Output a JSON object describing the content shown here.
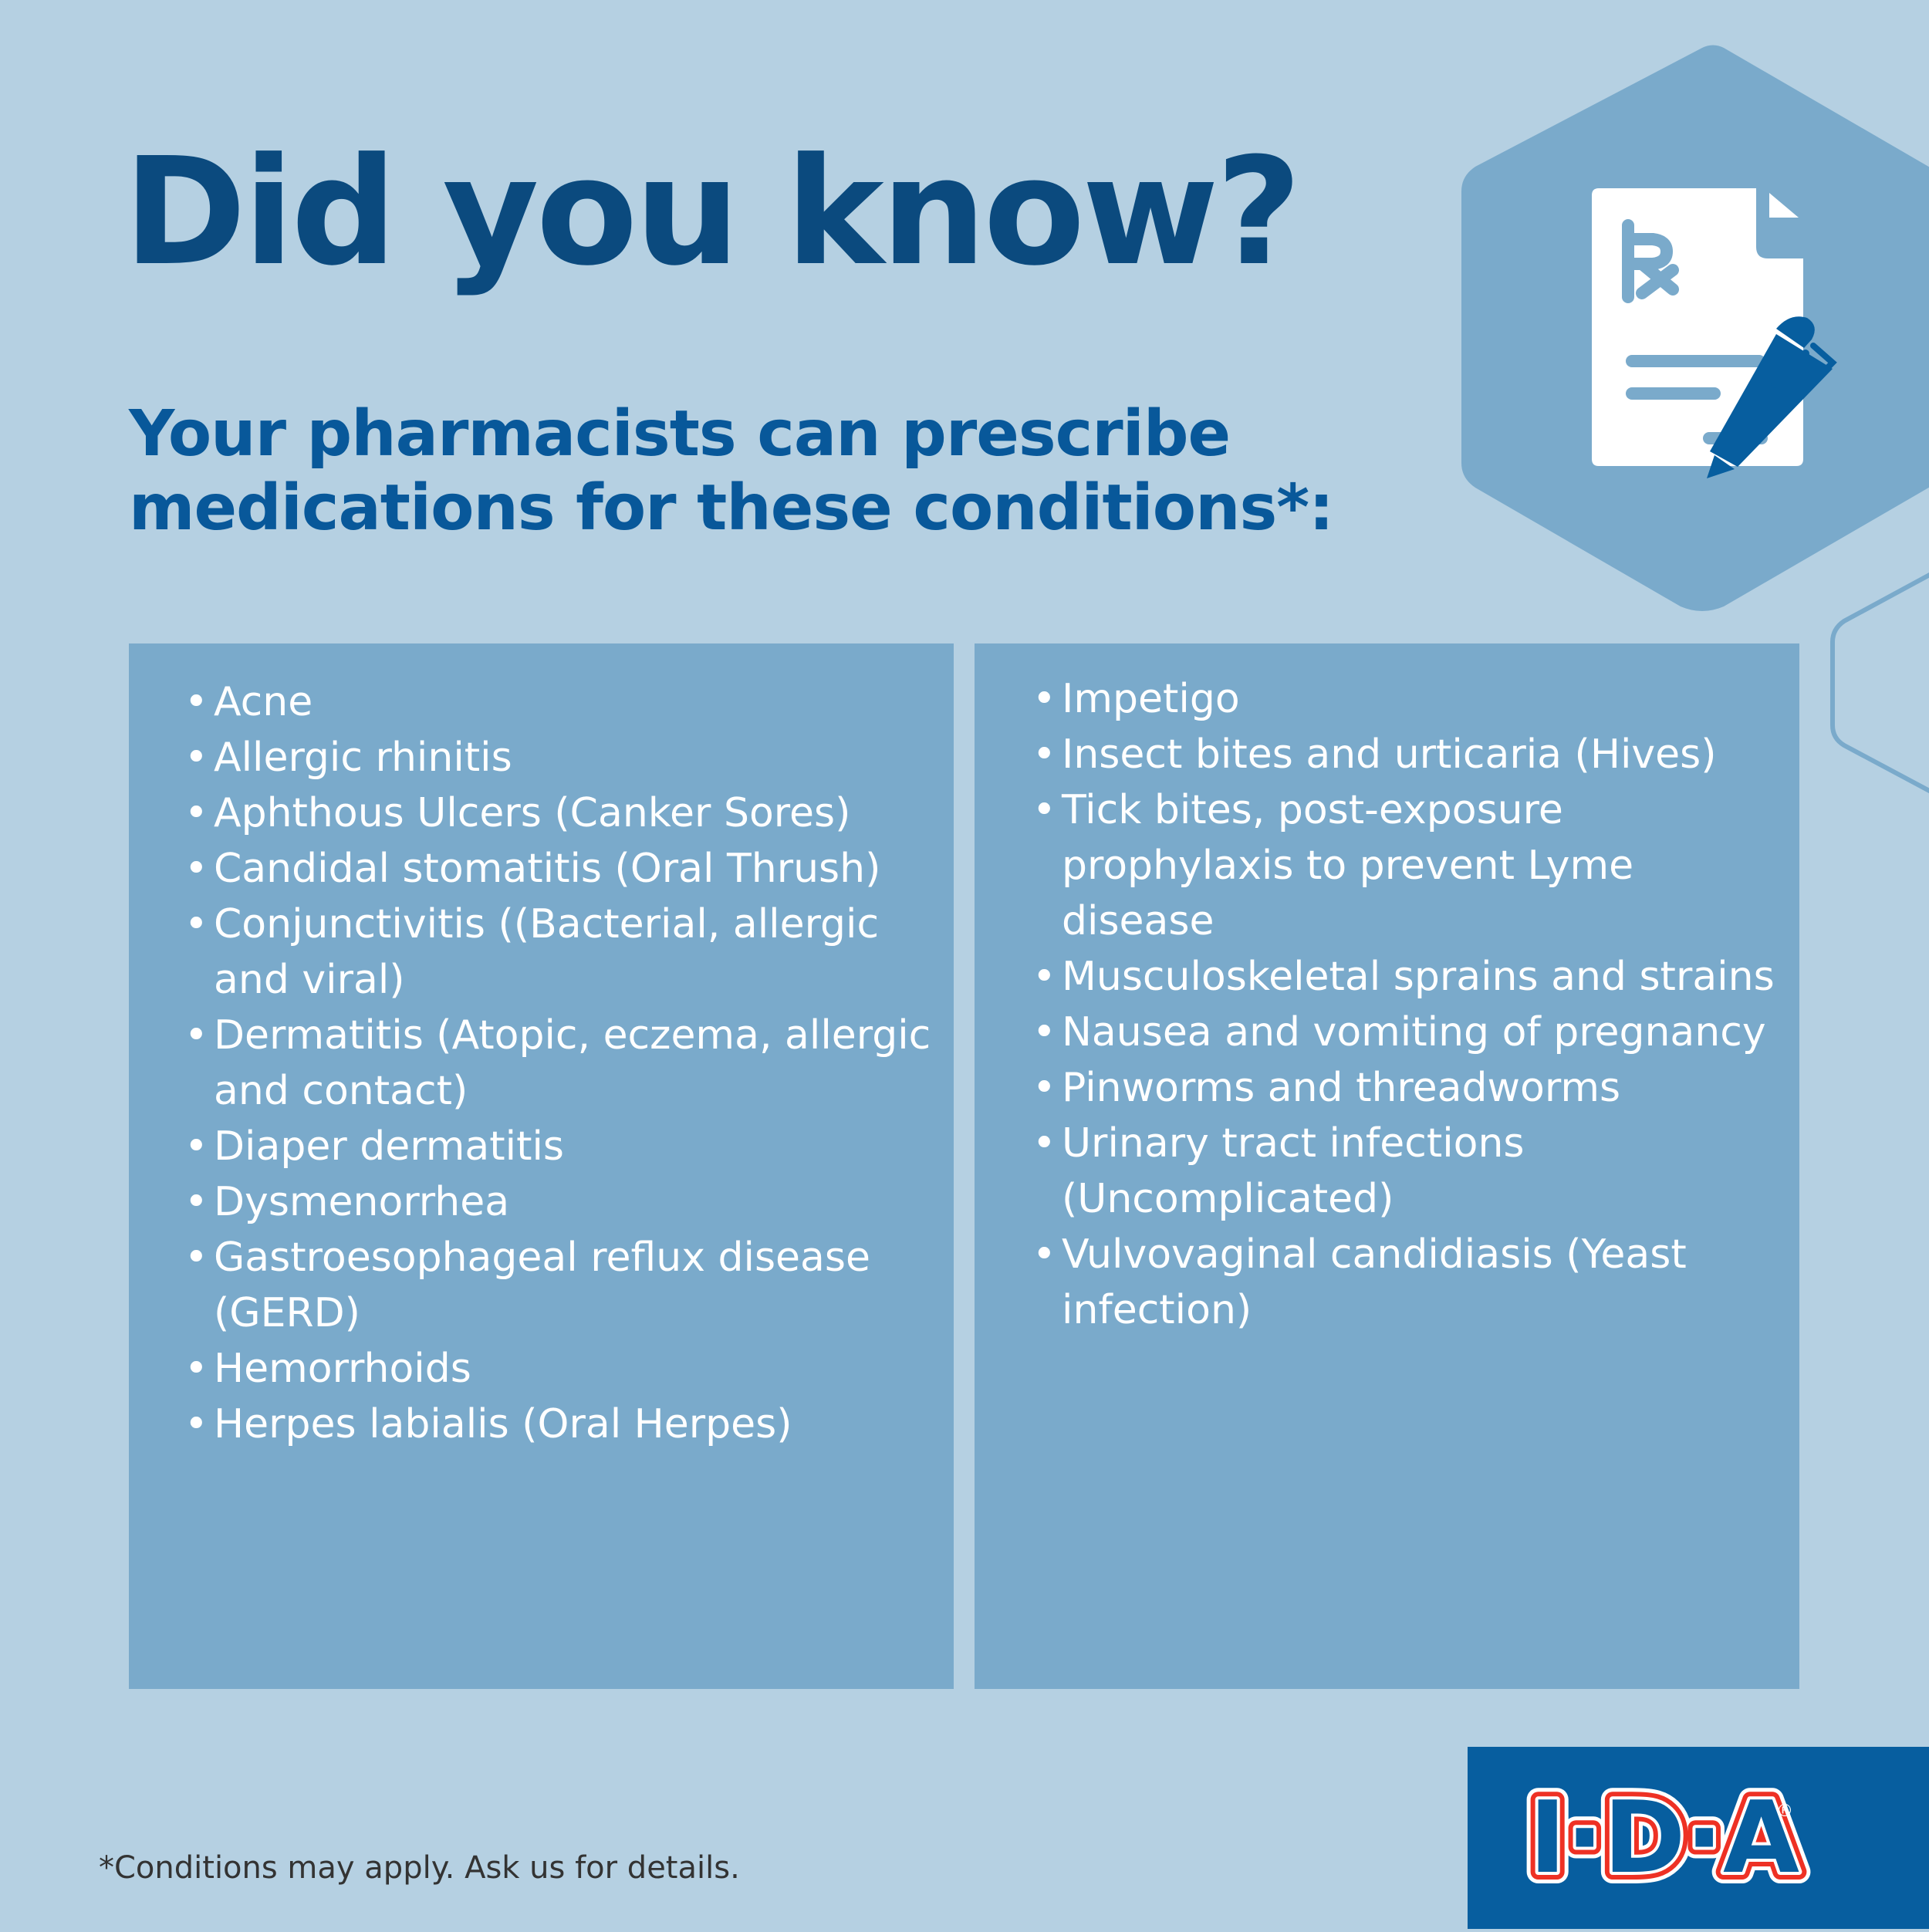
{
  "header": {
    "title": "Did you know?",
    "subtitle_line1": "Your pharmacists can prescribe",
    "subtitle_line2": "medications for these conditions*:"
  },
  "conditions_left": [
    {
      "text": "Acne"
    },
    {
      "text": "Allergic rhinitis"
    },
    {
      "text": "Aphthous Ulcers (Canker Sores)"
    },
    {
      "text": "Candidal stomatitis (Oral Thrush)"
    },
    {
      "text": "Conjunctivitis ((Bacterial, allergic and viral)"
    },
    {
      "text": "Dermatitis (Atopic, eczema, allergic and contact)"
    },
    {
      "text": "Diaper dermatitis"
    },
    {
      "text": "Dysmenorrhea"
    },
    {
      "text": "Gastroesophageal reflux disease (GERD)"
    },
    {
      "text": "Hemorrhoids"
    },
    {
      "text": "Herpes labialis (Oral Herpes)"
    }
  ],
  "conditions_right": [
    {
      "text": "Impetigo"
    },
    {
      "text": "Insect bites and urticaria (Hives)"
    },
    {
      "text": "Tick bites, post-exposure prophylaxis to prevent Lyme disease"
    },
    {
      "text": "Musculoskeletal sprains and strains"
    },
    {
      "text": "Nausea and vomiting of pregnancy"
    },
    {
      "text": "Pinworms and threadworms"
    },
    {
      "text": "Urinary tract infections (Uncomplicated)"
    },
    {
      "text": "Vulvovaginal candidiasis (Yeast infection)"
    }
  ],
  "bullet": "•",
  "footnote": "*Conditions may apply. Ask us for details.",
  "logo": {
    "text": "I·D·A",
    "registered": "®"
  },
  "icons": {
    "hero": "prescription-document-pen-icon"
  },
  "colors": {
    "background": "#b5d0e2",
    "panel": "#7aaacb",
    "title": "#0b4a7e",
    "subtitle": "#08589a",
    "logo_background": "#075e9f",
    "logo_red": "#ee3124"
  }
}
